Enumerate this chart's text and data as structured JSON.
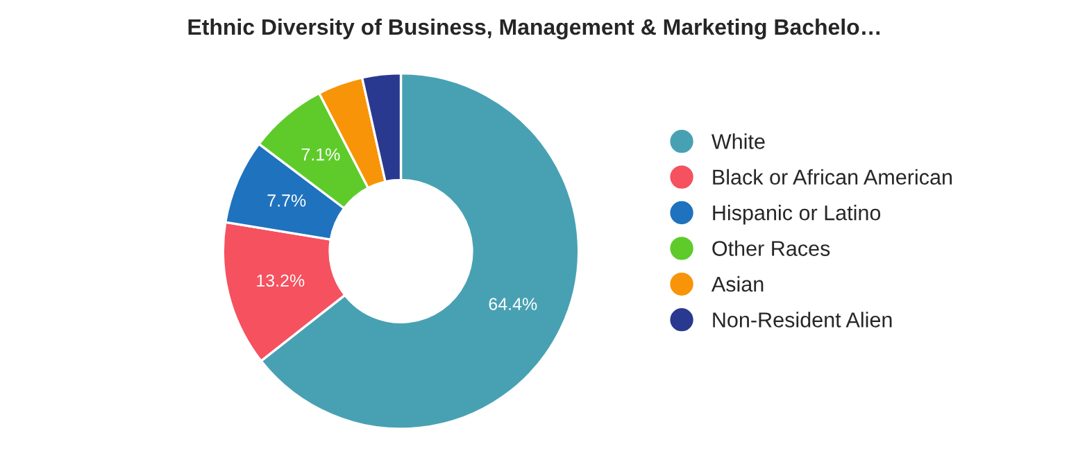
{
  "chart_data": {
    "type": "donut",
    "title": "Ethnic Diversity of Business, Management & Marketing Bachelo…",
    "categories": [
      "White",
      "Black or African American",
      "Hispanic or Latino",
      "Other Races",
      "Asian",
      "Non-Resident Alien"
    ],
    "values": [
      64.4,
      13.2,
      7.7,
      7.1,
      4.1,
      3.5
    ],
    "value_labels": [
      "64.4%",
      "13.2%",
      "7.7%",
      "7.1%",
      null,
      null
    ],
    "colors": [
      "#48a1b3",
      "#f5515f",
      "#1f72be",
      "#5ecb2a",
      "#f89408",
      "#2a3990"
    ],
    "legend": "right"
  }
}
